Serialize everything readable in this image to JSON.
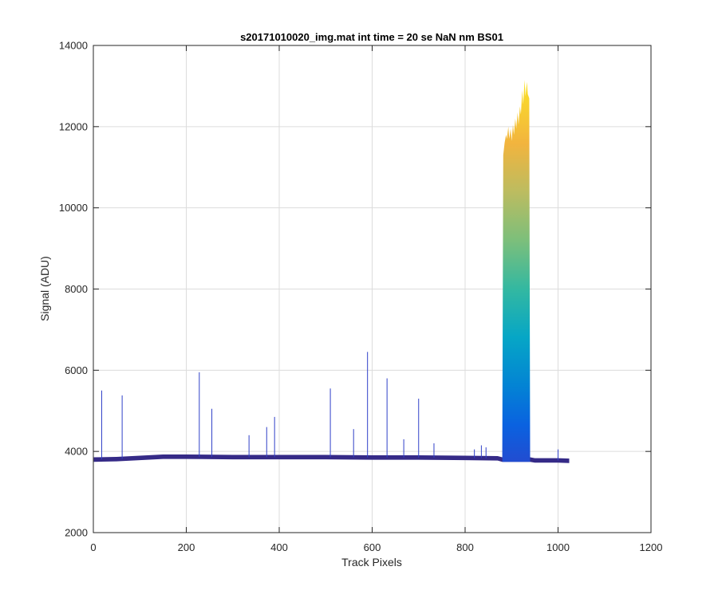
{
  "chart_data": {
    "type": "area",
    "title": "s20171010020_img.mat int time = 20 se  NaN nm BS01",
    "xlabel": "Track Pixels",
    "ylabel": "Signal (ADU)",
    "xlim": [
      0,
      1200
    ],
    "ylim": [
      2000,
      14000
    ],
    "xticks": [
      0,
      200,
      400,
      600,
      800,
      1000,
      1200
    ],
    "yticks": [
      2000,
      4000,
      6000,
      8000,
      10000,
      12000,
      14000
    ],
    "grid": true,
    "colormap": "parula",
    "series": [
      {
        "baseline": {
          "x": [
            1,
            50,
            100,
            150,
            200,
            300,
            400,
            500,
            600,
            700,
            800,
            870,
            880,
            940,
            950,
            1000,
            1024
          ],
          "y": [
            3800,
            3810,
            3840,
            3870,
            3870,
            3860,
            3860,
            3860,
            3850,
            3850,
            3840,
            3830,
            3800,
            3800,
            3780,
            3780,
            3770
          ]
        },
        "spikes": {
          "x": [
            18,
            62,
            228,
            255,
            335,
            373,
            390,
            510,
            560,
            590,
            632,
            668,
            700,
            733,
            820,
            835,
            845,
            1000
          ],
          "y": [
            5500,
            5380,
            5950,
            5050,
            4400,
            4600,
            4850,
            5550,
            4550,
            6450,
            5800,
            4300,
            5300,
            4200,
            4050,
            4150,
            4100,
            4050
          ]
        },
        "peak": {
          "x": [
            880,
            882,
            885,
            888,
            890,
            893,
            895,
            898,
            900,
            903,
            905,
            908,
            910,
            913,
            915,
            918,
            920,
            923,
            925,
            928,
            930,
            933,
            935,
            938,
            940
          ],
          "y": [
            3900,
            11300,
            11600,
            11800,
            11700,
            12000,
            11700,
            11950,
            11650,
            12050,
            11800,
            12200,
            11950,
            12350,
            12050,
            12500,
            12300,
            12900,
            12550,
            13150,
            12750,
            13100,
            12800,
            12700,
            3850
          ]
        }
      }
    ]
  }
}
